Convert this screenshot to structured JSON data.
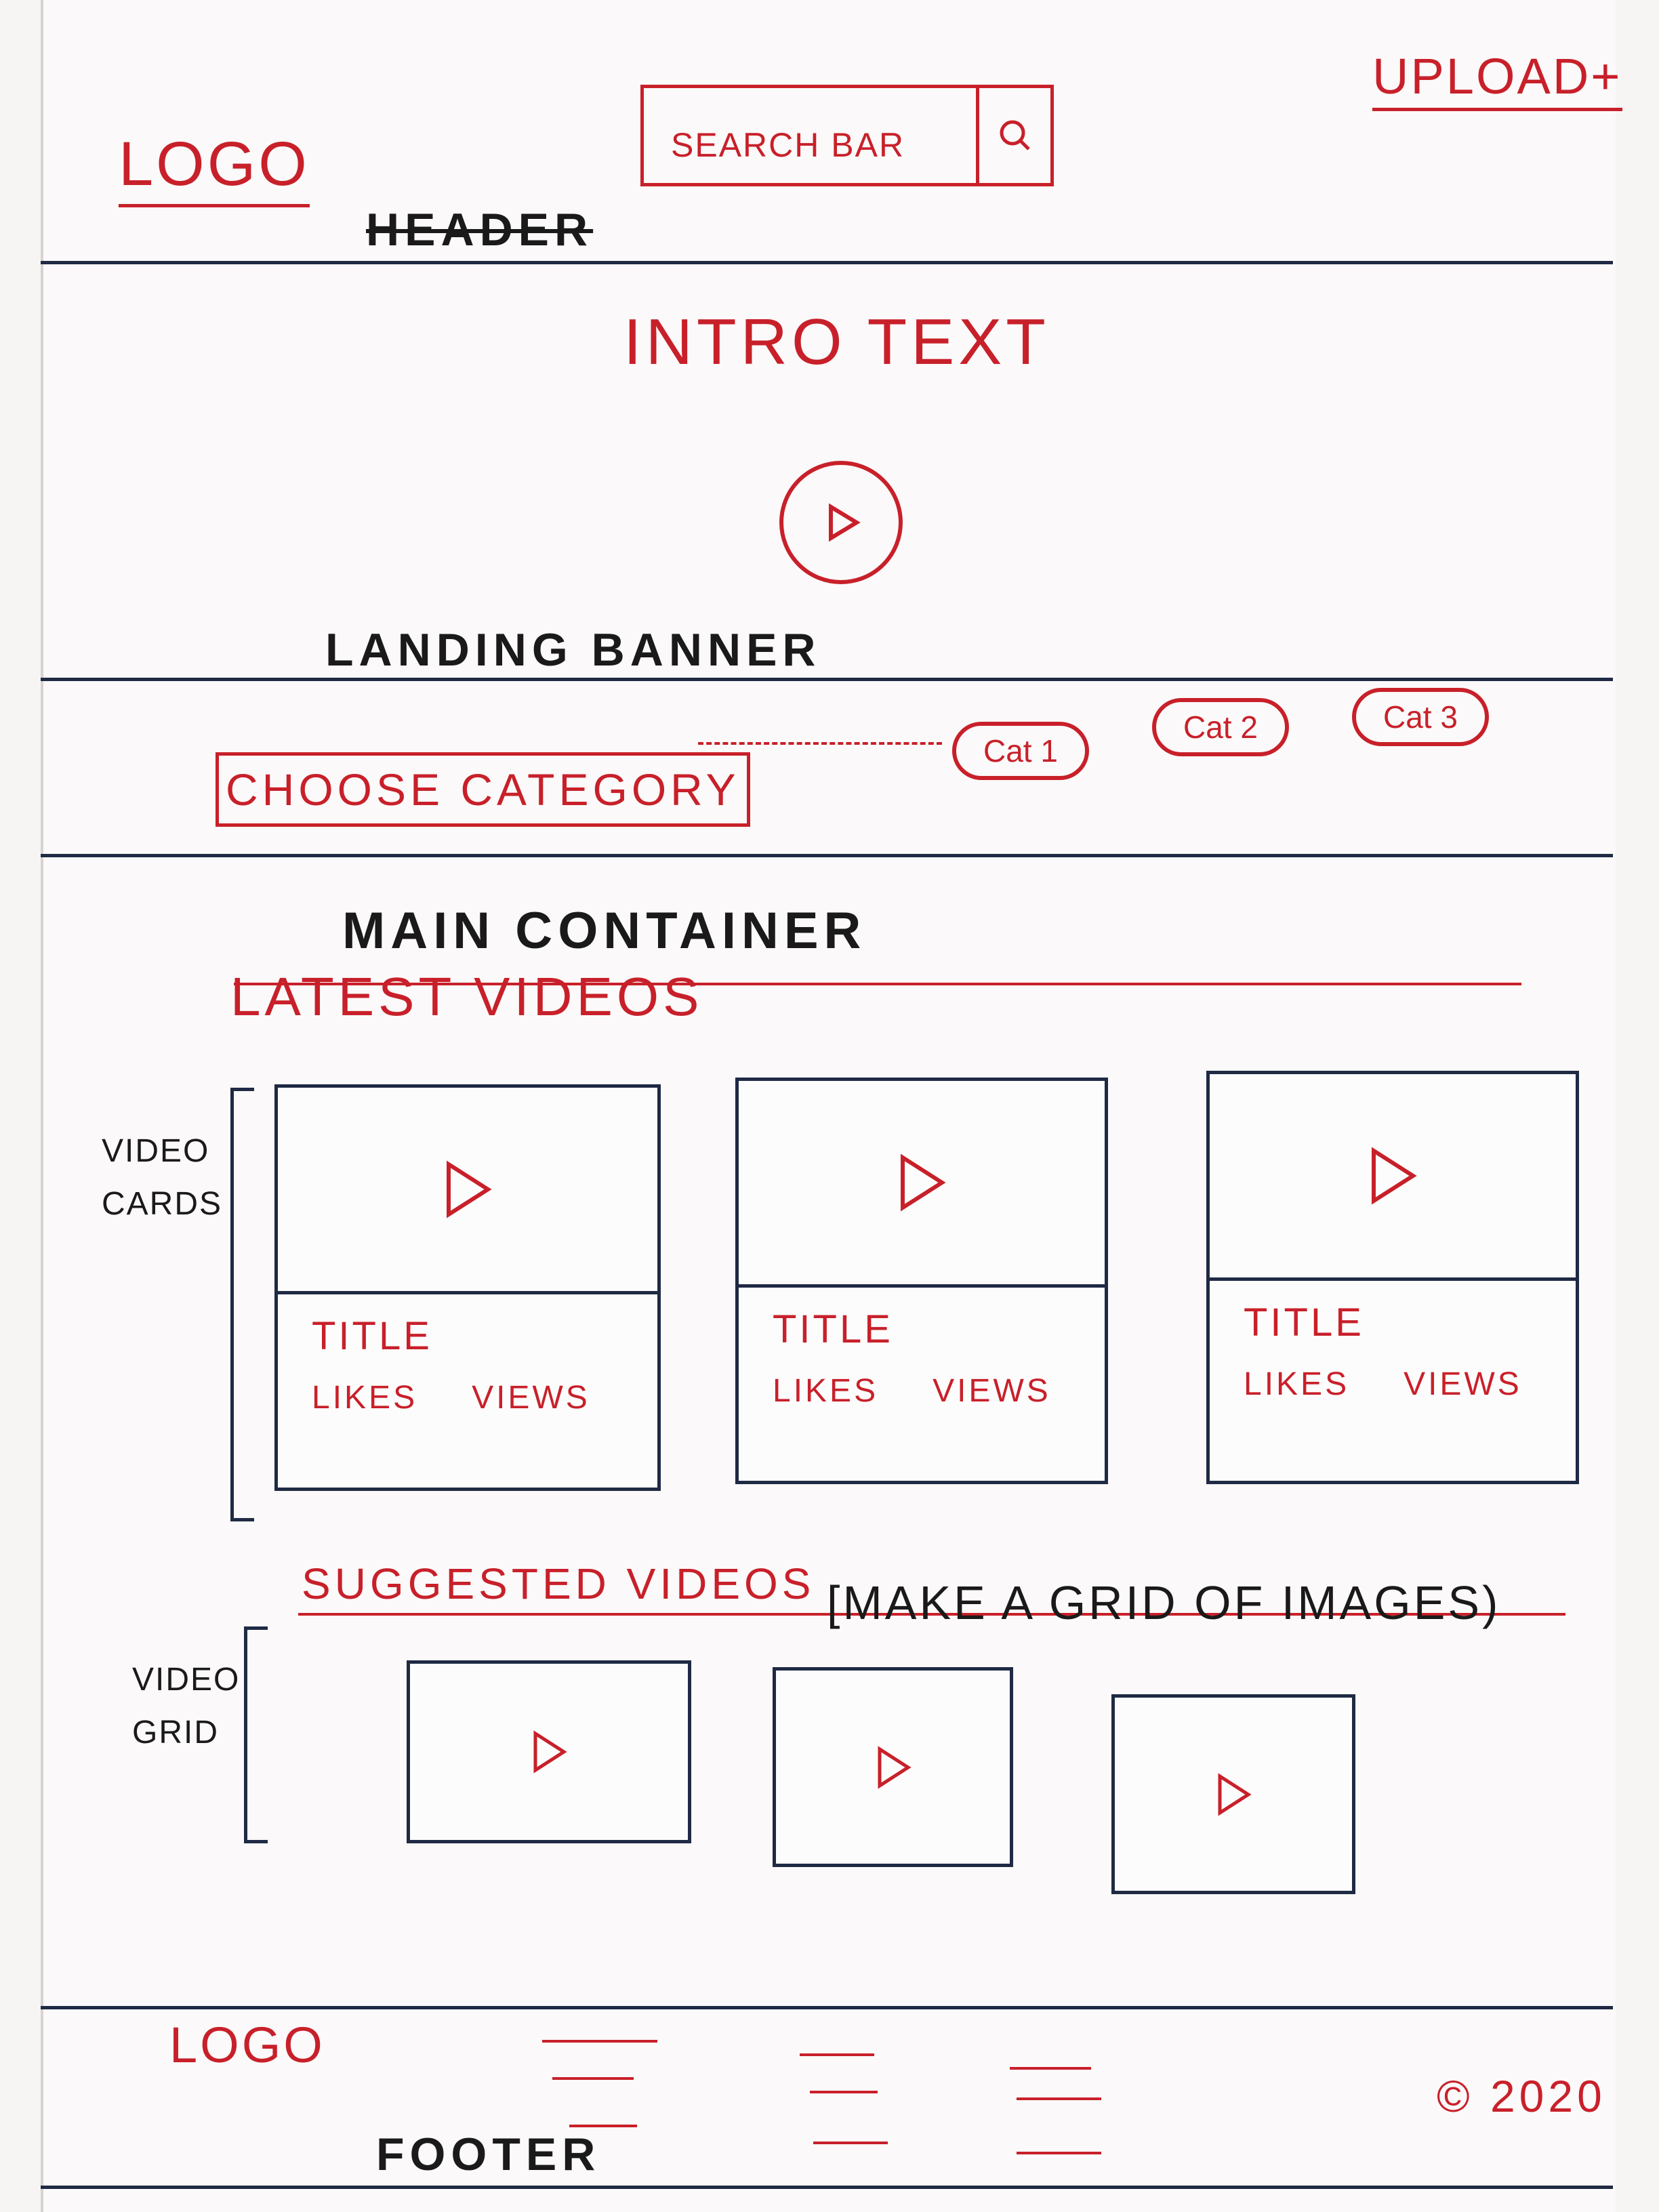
{
  "header": {
    "logo": "LOGO",
    "search_placeholder": "SEARCH BAR",
    "search_button_icon": "search-icon",
    "upload_label": "UPLOAD+",
    "section_label": "HEADER"
  },
  "banner": {
    "intro_text": "INTRO TEXT",
    "play_icon": "play-icon",
    "section_label": "LANDING BANNER"
  },
  "category": {
    "choose_label": "CHOOSE CATEGORY",
    "pills": [
      "Cat 1",
      "Cat 2",
      "Cat 3"
    ]
  },
  "main": {
    "section_label": "MAIN CONTAINER",
    "latest_heading": "LATEST VIDEOS",
    "cards_label_line1": "VIDEO",
    "cards_label_line2": "CARDS",
    "cards": [
      {
        "title": "TITLE",
        "likes": "LIKES",
        "views": "VIEWS"
      },
      {
        "title": "TITLE",
        "likes": "LIKES",
        "views": "VIEWS"
      },
      {
        "title": "TITLE",
        "likes": "LIKES",
        "views": "VIEWS"
      }
    ],
    "suggested_heading": "SUGGESTED VIDEOS",
    "suggested_note": "[MAKE A GRID OF IMAGES)",
    "grid_label_line1": "VIDEO",
    "grid_label_line2": "GRID"
  },
  "footer": {
    "logo": "LOGO",
    "section_label": "FOOTER",
    "copyright": "© 2020"
  },
  "colors": {
    "sketch_red": "#c8202a",
    "ink_blue": "#1f2a44",
    "paper": "#fbf9f9"
  }
}
